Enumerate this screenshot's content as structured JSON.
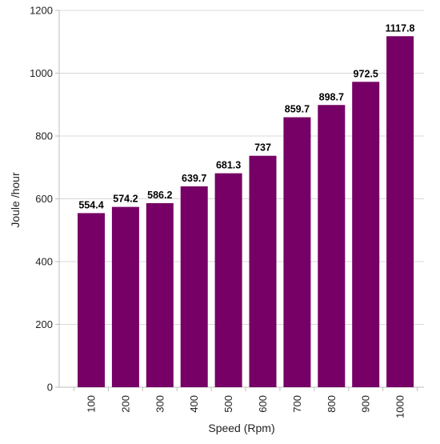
{
  "chart_data": {
    "type": "bar",
    "xlabel": "Speed (Rpm)",
    "ylabel": "Joule /hour",
    "categories": [
      "100",
      "200",
      "300",
      "400",
      "500",
      "600",
      "700",
      "800",
      "900",
      "1000"
    ],
    "values": [
      554.4,
      574.2,
      586.2,
      639.7,
      681.3,
      737,
      859.7,
      898.7,
      972.5,
      1117.8
    ],
    "data_labels": [
      "554.4",
      "574.2",
      "586.2",
      "639.7",
      "681.3",
      "737",
      "859.7",
      "898.7",
      "972.5",
      "1117.8"
    ],
    "ylim": [
      0,
      1200
    ],
    "yticks": [
      0,
      200,
      400,
      600,
      800,
      1000,
      1200
    ],
    "ytick_labels": [
      "0",
      "200",
      "400",
      "600",
      "800",
      "1000",
      "1200"
    ],
    "grid": "horizontal",
    "legend": "none",
    "colors": {
      "bar": "#760065",
      "grid": "#d9d9d9",
      "axis": "#bfbfbf"
    }
  }
}
